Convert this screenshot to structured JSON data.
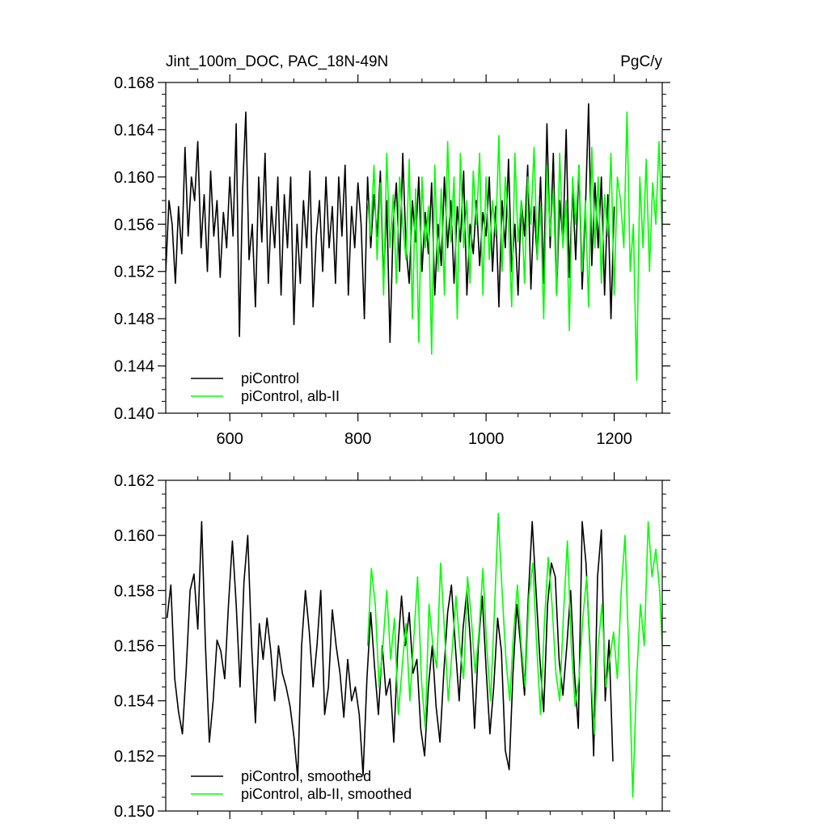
{
  "chart_data": [
    {
      "type": "line",
      "title_left": "Jint_100m_DOC, PAC_18N-49N",
      "title_right": "PgC/y",
      "xlim": [
        500,
        1275
      ],
      "ylim": [
        0.14,
        0.168
      ],
      "x_ticks": [
        600,
        800,
        1000,
        1200
      ],
      "x_tick_labels": [
        "600",
        "800",
        "1000",
        "1200"
      ],
      "y_ticks": [
        0.14,
        0.144,
        0.148,
        0.152,
        0.156,
        0.16,
        0.164,
        0.168
      ],
      "y_tick_labels": [
        "0.140",
        "0.144",
        "0.148",
        "0.152",
        "0.156",
        "0.160",
        "0.164",
        "0.168"
      ],
      "grid": false,
      "legend_position": "bottom-left",
      "series": [
        {
          "name": "piControl",
          "color": "#000000",
          "x": [
            500,
            505,
            510,
            515,
            520,
            525,
            530,
            535,
            540,
            545,
            550,
            555,
            560,
            565,
            570,
            575,
            580,
            585,
            590,
            595,
            600,
            605,
            610,
            615,
            620,
            625,
            630,
            635,
            640,
            645,
            650,
            655,
            660,
            665,
            670,
            675,
            680,
            685,
            690,
            695,
            700,
            705,
            710,
            715,
            720,
            725,
            730,
            735,
            740,
            745,
            750,
            755,
            760,
            765,
            770,
            775,
            780,
            785,
            790,
            795,
            800,
            805,
            810,
            815,
            820,
            825,
            830,
            835,
            840,
            845,
            850,
            855,
            860,
            865,
            870,
            875,
            880,
            885,
            890,
            895,
            900,
            905,
            910,
            915,
            920,
            925,
            930,
            935,
            940,
            945,
            950,
            955,
            960,
            965,
            970,
            975,
            980,
            985,
            990,
            995,
            1000,
            1005,
            1010,
            1015,
            1020,
            1025,
            1030,
            1035,
            1040,
            1045,
            1050,
            1055,
            1060,
            1065,
            1070,
            1075,
            1080,
            1085,
            1090,
            1095,
            1100,
            1105,
            1110,
            1115,
            1120,
            1125,
            1130,
            1135,
            1140,
            1145,
            1150,
            1155,
            1160,
            1165,
            1170,
            1175,
            1180,
            1185,
            1190,
            1195,
            1200
          ],
          "values": [
            0.152,
            0.158,
            0.156,
            0.151,
            0.1575,
            0.1535,
            0.1625,
            0.155,
            0.16,
            0.158,
            0.163,
            0.154,
            0.1585,
            0.152,
            0.1605,
            0.155,
            0.158,
            0.1515,
            0.157,
            0.154,
            0.16,
            0.155,
            0.1645,
            0.1465,
            0.159,
            0.1655,
            0.153,
            0.156,
            0.149,
            0.16,
            0.1545,
            0.162,
            0.151,
            0.1575,
            0.154,
            0.16,
            0.15,
            0.1585,
            0.154,
            0.16,
            0.1475,
            0.156,
            0.151,
            0.158,
            0.154,
            0.1605,
            0.149,
            0.155,
            0.158,
            0.152,
            0.16,
            0.154,
            0.1575,
            0.151,
            0.16,
            0.155,
            0.161,
            0.15,
            0.1575,
            0.154,
            0.1595,
            0.156,
            0.148,
            0.16,
            0.154,
            0.1585,
            0.155,
            0.1605,
            0.151,
            0.158,
            0.146,
            0.156,
            0.1595,
            0.152,
            0.162,
            0.154,
            0.151,
            0.158,
            0.1545,
            0.16,
            0.152,
            0.157,
            0.1535,
            0.1595,
            0.15,
            0.156,
            0.1525,
            0.16,
            0.154,
            0.158,
            0.151,
            0.1575,
            0.1545,
            0.1605,
            0.15,
            0.156,
            0.1535,
            0.158,
            0.1525,
            0.157,
            0.155,
            0.16,
            0.152,
            0.1575,
            0.149,
            0.158,
            0.154,
            0.1615,
            0.152,
            0.156,
            0.15,
            0.158,
            0.155,
            0.161,
            0.1505,
            0.1575,
            0.153,
            0.16,
            0.151,
            0.1645,
            0.154,
            0.162,
            0.15,
            0.158,
            0.1545,
            0.164,
            0.1515,
            0.159,
            0.153,
            0.161,
            0.1505,
            0.157,
            0.1662,
            0.1525,
            0.1595,
            0.154,
            0.16,
            0.15,
            0.1585,
            0.148,
            0.1575
          ]
        },
        {
          "name": "piControl, alb-II",
          "color": "#00ff00",
          "x": [
            815,
            820,
            825,
            830,
            835,
            840,
            845,
            850,
            855,
            860,
            865,
            870,
            875,
            880,
            885,
            890,
            895,
            900,
            905,
            910,
            915,
            920,
            925,
            930,
            935,
            940,
            945,
            950,
            955,
            960,
            965,
            970,
            975,
            980,
            985,
            990,
            995,
            1000,
            1005,
            1010,
            1015,
            1020,
            1025,
            1030,
            1035,
            1040,
            1045,
            1050,
            1055,
            1060,
            1065,
            1070,
            1075,
            1080,
            1085,
            1090,
            1095,
            1100,
            1105,
            1110,
            1115,
            1120,
            1125,
            1130,
            1135,
            1140,
            1145,
            1150,
            1155,
            1160,
            1165,
            1170,
            1175,
            1180,
            1185,
            1190,
            1195,
            1200,
            1205,
            1210,
            1215,
            1220,
            1225,
            1230,
            1235,
            1240,
            1245,
            1250,
            1255,
            1260,
            1265,
            1270,
            1275
          ],
          "values": [
            0.158,
            0.155,
            0.161,
            0.153,
            0.1595,
            0.15,
            0.162,
            0.154,
            0.1585,
            0.151,
            0.16,
            0.156,
            0.153,
            0.1615,
            0.148,
            0.159,
            0.146,
            0.16,
            0.154,
            0.1575,
            0.145,
            0.161,
            0.152,
            0.159,
            0.15,
            0.163,
            0.1545,
            0.16,
            0.148,
            0.162,
            0.154,
            0.158,
            0.151,
            0.1605,
            0.156,
            0.162,
            0.15,
            0.16,
            0.153,
            0.158,
            0.155,
            0.1635,
            0.152,
            0.16,
            0.156,
            0.149,
            0.162,
            0.1545,
            0.158,
            0.151,
            0.16,
            0.156,
            0.1625,
            0.153,
            0.1575,
            0.148,
            0.161,
            0.155,
            0.159,
            0.15,
            0.162,
            0.154,
            0.158,
            0.147,
            0.16,
            0.156,
            0.161,
            0.152,
            0.158,
            0.149,
            0.1625,
            0.154,
            0.16,
            0.151,
            0.1585,
            0.155,
            0.162,
            0.15,
            0.16,
            0.158,
            0.154,
            0.1655,
            0.152,
            0.156,
            0.1428,
            0.16,
            0.154,
            0.1615,
            0.152,
            0.1595,
            0.156,
            0.163,
            0.155
          ]
        }
      ]
    },
    {
      "type": "line",
      "xlim": [
        500,
        1275
      ],
      "ylim": [
        0.15,
        0.162
      ],
      "x_ticks": [
        600,
        800,
        1000,
        1200
      ],
      "y_ticks": [
        0.15,
        0.152,
        0.154,
        0.156,
        0.158,
        0.16,
        0.162
      ],
      "y_tick_labels": [
        "0.150",
        "0.152",
        "0.154",
        "0.156",
        "0.158",
        "0.160",
        "0.162"
      ],
      "grid": false,
      "legend_position": "bottom-left",
      "series": [
        {
          "name": "piControl, smoothed",
          "color": "#000000",
          "x": [
            502,
            508,
            514,
            520,
            526,
            532,
            538,
            544,
            550,
            556,
            562,
            568,
            574,
            580,
            586,
            592,
            598,
            604,
            610,
            616,
            622,
            628,
            634,
            640,
            646,
            652,
            658,
            664,
            670,
            676,
            682,
            688,
            694,
            700,
            706,
            712,
            718,
            724,
            730,
            736,
            742,
            748,
            754,
            760,
            766,
            772,
            778,
            784,
            790,
            796,
            802,
            808,
            814,
            820,
            826,
            832,
            838,
            844,
            850,
            856,
            862,
            868,
            874,
            880,
            886,
            892,
            898,
            904,
            910,
            916,
            922,
            928,
            934,
            940,
            946,
            952,
            958,
            964,
            970,
            976,
            982,
            988,
            994,
            1000,
            1006,
            1012,
            1018,
            1024,
            1030,
            1036,
            1042,
            1048,
            1054,
            1060,
            1066,
            1072,
            1078,
            1084,
            1090,
            1096,
            1102,
            1108,
            1114,
            1120,
            1126,
            1132,
            1138,
            1144,
            1150,
            1156,
            1162,
            1168,
            1174,
            1180,
            1186,
            1192,
            1198
          ],
          "values": [
            0.157,
            0.1582,
            0.1548,
            0.1536,
            0.1528,
            0.1552,
            0.158,
            0.1586,
            0.1566,
            0.1605,
            0.156,
            0.1525,
            0.154,
            0.1562,
            0.1558,
            0.1548,
            0.1575,
            0.1598,
            0.1575,
            0.1545,
            0.1583,
            0.16,
            0.156,
            0.1532,
            0.1568,
            0.1555,
            0.157,
            0.1558,
            0.154,
            0.156,
            0.155,
            0.1545,
            0.1538,
            0.1527,
            0.1512,
            0.156,
            0.158,
            0.1565,
            0.1545,
            0.156,
            0.158,
            0.1535,
            0.1545,
            0.1573,
            0.156,
            0.155,
            0.1534,
            0.1555,
            0.154,
            0.1545,
            0.1535,
            0.1513,
            0.1548,
            0.1572,
            0.1552,
            0.1535,
            0.156,
            0.1542,
            0.1548,
            0.1525,
            0.1558,
            0.1578,
            0.156,
            0.1572,
            0.155,
            0.1555,
            0.153,
            0.152,
            0.1545,
            0.156,
            0.1538,
            0.1525,
            0.155,
            0.1572,
            0.1582,
            0.156,
            0.154,
            0.1566,
            0.158,
            0.156,
            0.153,
            0.156,
            0.1578,
            0.1552,
            0.1528,
            0.1545,
            0.157,
            0.1558,
            0.1522,
            0.1515,
            0.155,
            0.1575,
            0.156,
            0.1542,
            0.1578,
            0.1605,
            0.158,
            0.1555,
            0.1536,
            0.1575,
            0.159,
            0.1585,
            0.1555,
            0.1542,
            0.156,
            0.158,
            0.155,
            0.153,
            0.1605,
            0.159,
            0.156,
            0.152,
            0.1585,
            0.1602,
            0.154,
            0.1562,
            0.1518
          ]
        },
        {
          "name": "piControl, alb-II, smoothed",
          "color": "#00ff00",
          "x": [
            815,
            821,
            827,
            833,
            839,
            845,
            851,
            857,
            863,
            869,
            875,
            881,
            887,
            893,
            899,
            905,
            911,
            917,
            923,
            929,
            935,
            941,
            947,
            953,
            959,
            965,
            971,
            977,
            983,
            989,
            995,
            1001,
            1007,
            1013,
            1019,
            1025,
            1031,
            1037,
            1043,
            1049,
            1055,
            1061,
            1067,
            1073,
            1079,
            1085,
            1091,
            1097,
            1103,
            1109,
            1115,
            1121,
            1127,
            1133,
            1139,
            1145,
            1151,
            1157,
            1163,
            1169,
            1175,
            1181,
            1187,
            1193,
            1199,
            1205,
            1211,
            1217,
            1223,
            1229,
            1235,
            1241,
            1247,
            1253,
            1259,
            1265,
            1271,
            1275
          ],
          "values": [
            0.156,
            0.1588,
            0.1575,
            0.1545,
            0.156,
            0.158,
            0.1555,
            0.157,
            0.1535,
            0.1552,
            0.1568,
            0.154,
            0.1562,
            0.1585,
            0.1548,
            0.153,
            0.1575,
            0.156,
            0.1552,
            0.159,
            0.1566,
            0.154,
            0.1558,
            0.1578,
            0.156,
            0.1548,
            0.1585,
            0.157,
            0.155,
            0.1565,
            0.1588,
            0.156,
            0.154,
            0.1572,
            0.1608,
            0.158,
            0.1555,
            0.154,
            0.1565,
            0.1582,
            0.156,
            0.1545,
            0.1578,
            0.159,
            0.156,
            0.1535,
            0.1568,
            0.1592,
            0.1575,
            0.155,
            0.154,
            0.1572,
            0.1598,
            0.156,
            0.1538,
            0.1548,
            0.157,
            0.1585,
            0.1552,
            0.1528,
            0.156,
            0.1575,
            0.1545,
            0.1555,
            0.1565,
            0.1548,
            0.158,
            0.16,
            0.1555,
            0.1505,
            0.1548,
            0.1575,
            0.156,
            0.1605,
            0.1585,
            0.1595,
            0.158,
            0.156
          ]
        }
      ]
    }
  ]
}
